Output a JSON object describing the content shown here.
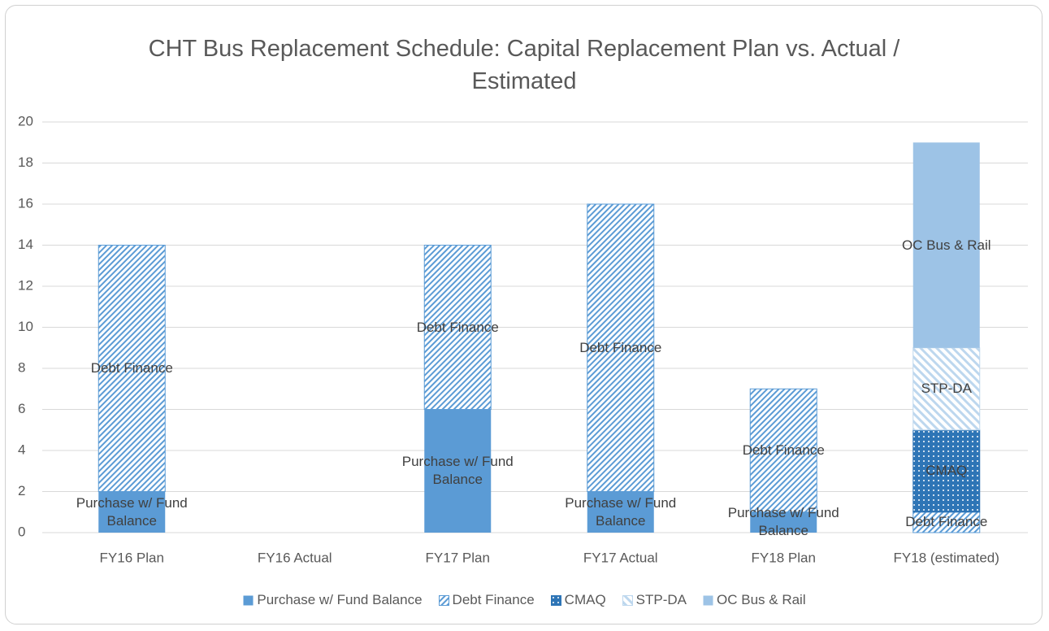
{
  "chart_data": {
    "type": "stacked_bar",
    "title": "CHT Bus Replacement Schedule: Capital Replacement Plan vs. Actual / Estimated",
    "categories": [
      "FY16 Plan",
      "FY16 Actual",
      "FY17 Plan",
      "FY17 Actual",
      "FY18 Plan",
      "FY18 (estimated)"
    ],
    "series": [
      {
        "name": "Purchase w/ Fund Balance",
        "color": "#5b9bd5",
        "pattern": "solid",
        "values": [
          2,
          null,
          6,
          2,
          1,
          null
        ]
      },
      {
        "name": "Debt Finance",
        "color": "#5b9bd5",
        "pattern": "hatch",
        "values": [
          12,
          null,
          8,
          14,
          6,
          1
        ]
      },
      {
        "name": "CMAQ",
        "color": "#2e75b6",
        "pattern": "dots",
        "values": [
          null,
          null,
          null,
          null,
          null,
          4
        ]
      },
      {
        "name": "STP-DA",
        "color": "#bdd7ee",
        "pattern": "lighthatch",
        "values": [
          null,
          null,
          null,
          null,
          null,
          4
        ]
      },
      {
        "name": "OC Bus & Rail",
        "color": "#9dc3e6",
        "pattern": "solid",
        "values": [
          null,
          null,
          null,
          null,
          null,
          10
        ]
      }
    ],
    "ylim": [
      0,
      20
    ],
    "yticks": [
      0,
      2,
      4,
      6,
      8,
      10,
      12,
      14,
      16,
      18,
      20
    ],
    "grid": true,
    "legend": "bottom"
  }
}
